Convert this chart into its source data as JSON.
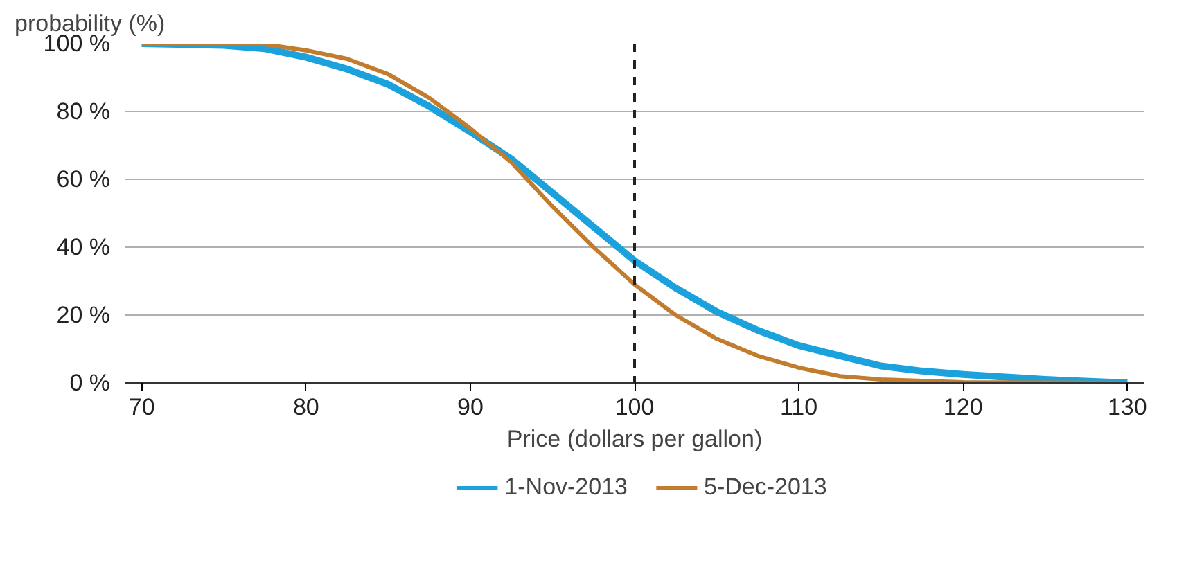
{
  "chart_data": {
    "type": "line",
    "ylabel": "probability (%)",
    "xlabel": "Price (dollars per gallon)",
    "xlim": [
      69,
      131
    ],
    "xticks": [
      70,
      80,
      90,
      100,
      110,
      120,
      130
    ],
    "ylim": [
      0,
      100
    ],
    "yticks": [
      {
        "value": 0,
        "label": "0 %"
      },
      {
        "value": 20,
        "label": "20 %"
      },
      {
        "value": 40,
        "label": "40 %"
      },
      {
        "value": 60,
        "label": "60 %"
      },
      {
        "value": 80,
        "label": "80 %"
      },
      {
        "value": 100,
        "label": "100 %"
      }
    ],
    "grid": "y",
    "legend": "bottom",
    "line_style": "solid",
    "marker": "none",
    "ref_lines": [
      {
        "axis": "x",
        "value": 100,
        "label": null,
        "color": "#222222",
        "line_style": "dashed"
      }
    ],
    "series": [
      {
        "name": "1-Nov-2013",
        "color": "#1ba1dc",
        "x": [
          70,
          75,
          77.5,
          80,
          82.5,
          85,
          87.5,
          90,
          92.5,
          95,
          97.5,
          100,
          102.5,
          105,
          107.5,
          110,
          112.5,
          115,
          117.5,
          120,
          125,
          130
        ],
        "values": [
          100,
          99.5,
          98.5,
          96,
          92.5,
          88,
          81.5,
          74,
          66,
          56,
          46,
          36,
          28,
          21,
          15.5,
          11,
          8,
          5,
          3.5,
          2.5,
          1,
          0
        ]
      },
      {
        "name": "5-Dec-2013",
        "color": "#c27c2e",
        "x": [
          70,
          75,
          77.5,
          80,
          82.5,
          85,
          87.5,
          90,
          92.5,
          95,
          97.5,
          100,
          102.5,
          105,
          107.5,
          110,
          112.5,
          115,
          120,
          130
        ],
        "values": [
          100,
          100,
          99.8,
          98,
          95.5,
          91,
          84,
          75,
          65,
          52,
          40,
          29,
          20,
          13,
          8,
          4.5,
          2,
          1,
          0.2,
          0
        ]
      }
    ]
  }
}
